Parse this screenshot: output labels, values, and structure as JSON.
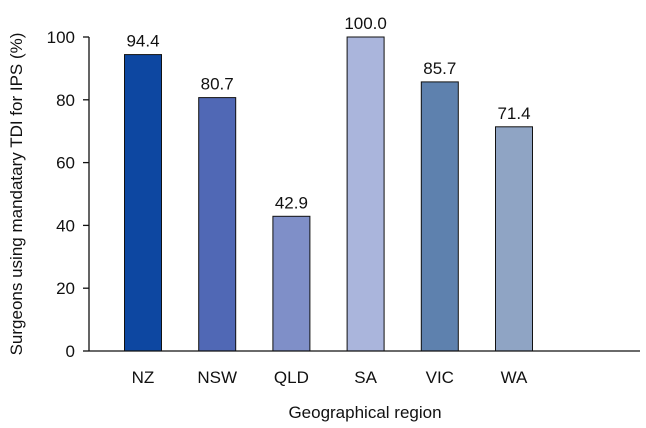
{
  "chart_data": {
    "type": "bar",
    "categories": [
      "NZ",
      "NSW",
      "QLD",
      "SA",
      "VIC",
      "WA"
    ],
    "values": [
      94.4,
      80.7,
      42.9,
      100.0,
      85.7,
      71.4
    ],
    "data_labels": [
      "94.4",
      "80.7",
      "42.9",
      "100.0",
      "85.7",
      "71.4"
    ],
    "colors": [
      "#0d47a1",
      "#5068b5",
      "#7f8fc8",
      "#aab5dc",
      "#5e81ae",
      "#8fa4c4"
    ],
    "title": "",
    "xlabel": "Geographical region",
    "ylabel": "Surgeons using mandatary TDI for IPS (%)",
    "ylim": [
      0,
      100
    ],
    "yticks": [
      0,
      20,
      40,
      60,
      80,
      100
    ],
    "grid": false,
    "legend": "none"
  }
}
